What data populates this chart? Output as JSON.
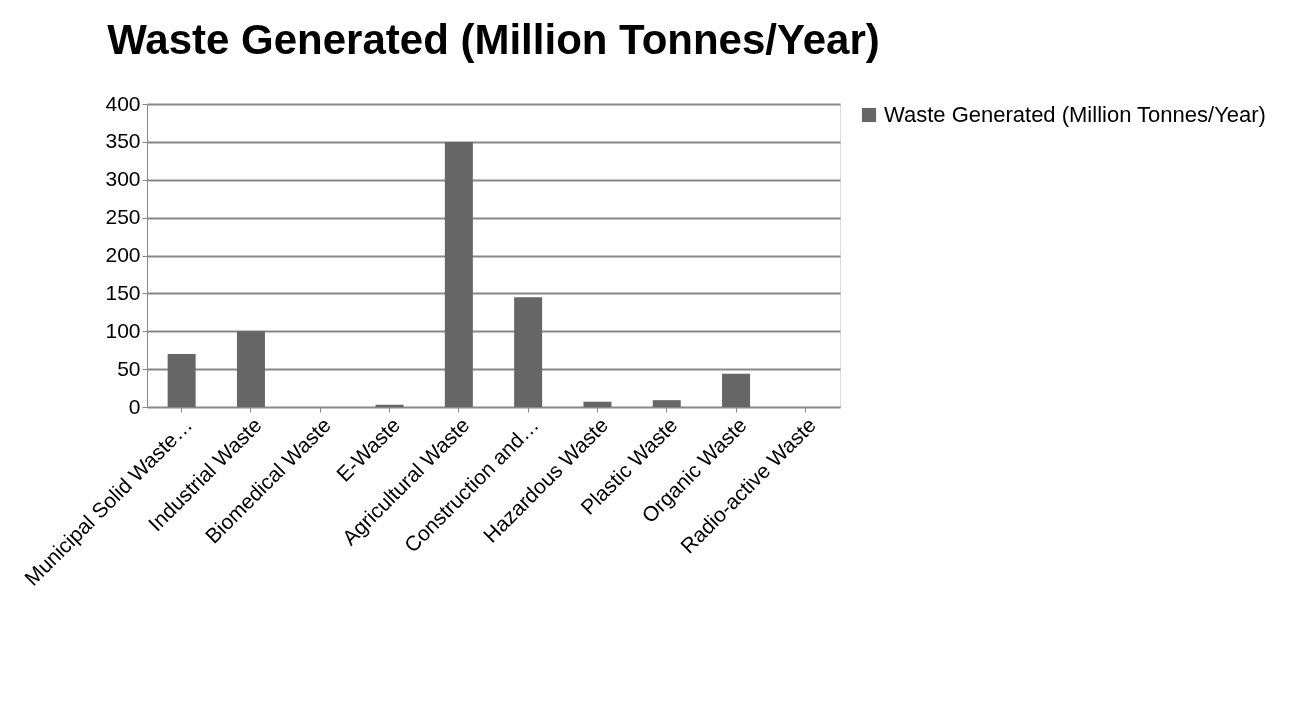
{
  "chart_data": {
    "type": "bar",
    "title": "Waste Generated (Million Tonnes/Year)",
    "categories": [
      "Municipal Solid Waste…",
      "Industrial Waste",
      "Biomedical Waste",
      "E-Waste",
      "Agricultural Waste",
      "Construction and…",
      "Hazardous Waste",
      "Plastic Waste",
      "Organic Waste",
      "Radio-active Waste"
    ],
    "series": [
      {
        "name": "Waste Generated (Million Tonnes/Year)",
        "color": "#666666",
        "values": [
          70,
          100,
          0,
          3,
          350,
          145,
          7,
          9,
          44,
          0
        ]
      }
    ],
    "ylim": [
      0,
      400
    ],
    "yticks": [
      0,
      50,
      100,
      150,
      200,
      250,
      300,
      350,
      400
    ],
    "grid": "y",
    "legend": "right"
  }
}
